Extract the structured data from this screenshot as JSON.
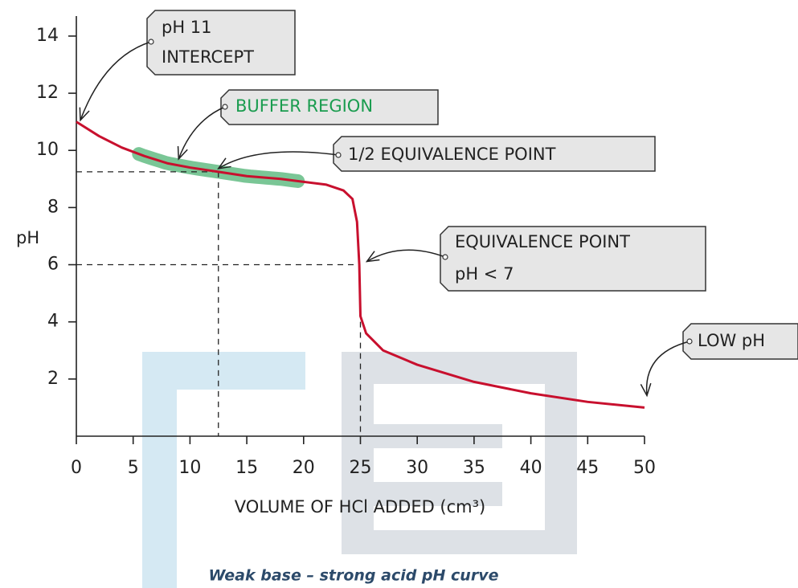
{
  "chart_data": {
    "type": "line",
    "title": "Weak base – strong acid pH curve",
    "xlabel": "VOLUME OF HCl ADDED (cm³)",
    "ylabel": "pH",
    "color": "#c8102e",
    "x": [
      0,
      2,
      4,
      6,
      8,
      10,
      12.5,
      15,
      18,
      20,
      22,
      23.5,
      24.3,
      24.7,
      24.9,
      25,
      25.5,
      27,
      30,
      35,
      40,
      45,
      50
    ],
    "values": [
      11.0,
      10.5,
      10.1,
      9.8,
      9.55,
      9.4,
      9.25,
      9.1,
      9.0,
      8.9,
      8.8,
      8.6,
      8.3,
      7.5,
      6.0,
      4.2,
      3.6,
      3.0,
      2.5,
      1.9,
      1.5,
      1.2,
      1.0
    ],
    "xlim": [
      0,
      50
    ],
    "ylim": [
      0,
      14.7
    ],
    "xticks": [
      0,
      5,
      10,
      15,
      20,
      25,
      30,
      35,
      40,
      45,
      50
    ],
    "yticks": [
      2,
      4,
      6,
      8,
      10,
      12,
      14
    ],
    "buffer_region": {
      "text": "BUFFER REGION",
      "x": [
        5.5,
        19.5
      ],
      "color": "#6cc08b"
    },
    "annotations": [
      {
        "text": [
          "pH 11",
          "INTERCEPT"
        ],
        "x": 0,
        "y": 11
      },
      {
        "text": [
          "1/2 EQUIVALENCE POINT"
        ],
        "x": 12.5,
        "y": 9.25
      },
      {
        "text": [
          "EQUIVALENCE POINT",
          "pH < 7"
        ],
        "x": 25,
        "y": 6
      },
      {
        "text": [
          "LOW pH"
        ],
        "x": 50,
        "y": 1
      }
    ]
  }
}
